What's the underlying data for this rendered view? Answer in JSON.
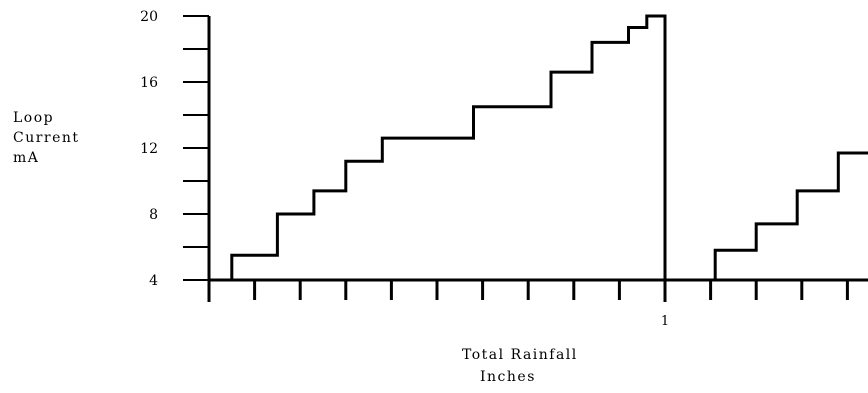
{
  "chart_data": {
    "type": "line",
    "title": "",
    "ylabel_lines": [
      "Loop",
      "Current",
      "mA"
    ],
    "xlabel_lines": [
      "Total Rainfall",
      "Inches"
    ],
    "ylim": [
      4,
      20
    ],
    "y_ticks": [
      4,
      8,
      12,
      16,
      20
    ],
    "x_tick_labels": [
      {
        "x": 1,
        "label": "1"
      }
    ],
    "x_minor_tick_step": 0.1,
    "xlim": [
      0,
      1.4
    ],
    "grid": false,
    "series": [
      {
        "step_points": [
          [
            0.0,
            4.0
          ],
          [
            0.05,
            4.0
          ],
          [
            0.05,
            5.5
          ],
          [
            0.15,
            5.5
          ],
          [
            0.15,
            8.0
          ],
          [
            0.23,
            8.0
          ],
          [
            0.23,
            9.4
          ],
          [
            0.3,
            9.4
          ],
          [
            0.3,
            11.2
          ],
          [
            0.38,
            11.2
          ],
          [
            0.38,
            12.6
          ],
          [
            0.58,
            12.6
          ],
          [
            0.58,
            14.5
          ],
          [
            0.75,
            14.5
          ],
          [
            0.75,
            16.6
          ],
          [
            0.84,
            16.6
          ],
          [
            0.84,
            18.4
          ],
          [
            0.92,
            18.4
          ],
          [
            0.92,
            19.3
          ],
          [
            0.96,
            19.3
          ],
          [
            0.96,
            20.0
          ],
          [
            1.0,
            20.0
          ],
          [
            1.0,
            4.0
          ],
          [
            1.11,
            4.0
          ],
          [
            1.11,
            5.8
          ],
          [
            1.2,
            5.8
          ],
          [
            1.2,
            7.4
          ],
          [
            1.29,
            7.4
          ],
          [
            1.29,
            9.4
          ],
          [
            1.38,
            9.4
          ],
          [
            1.38,
            11.7
          ],
          [
            1.45,
            11.7
          ]
        ]
      }
    ]
  }
}
